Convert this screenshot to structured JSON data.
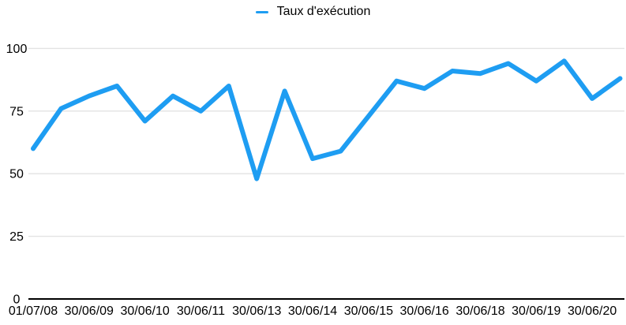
{
  "legend": {
    "position": "top-center"
  },
  "colors": {
    "background": "#FFFFFF",
    "line": "#1E9DF2",
    "gridline": "#E3E3E3",
    "axis_line": "#000000",
    "text": "#000000"
  },
  "chart_data": {
    "type": "line",
    "title": "",
    "xlabel": "",
    "ylabel": "",
    "ylim": [
      0,
      100
    ],
    "y_ticks": [
      0,
      25,
      50,
      75,
      100
    ],
    "grid": "horizontal",
    "legend_position": "top-center",
    "x_tick_labels": [
      "01/07/08",
      "30/06/09",
      "30/06/10",
      "30/06/11",
      "30/06/13",
      "30/06/14",
      "30/06/15",
      "30/06/16",
      "30/06/18",
      "30/06/19",
      "30/06/20"
    ],
    "x_tick_every": 2,
    "series": [
      {
        "name": "Taux d'exécution",
        "color": "#1E9DF2",
        "values": [
          60,
          76,
          81,
          85,
          71,
          81,
          75,
          85,
          48,
          83,
          56,
          59,
          73,
          87,
          84,
          91,
          90,
          94,
          87,
          95,
          80,
          88
        ]
      }
    ]
  }
}
